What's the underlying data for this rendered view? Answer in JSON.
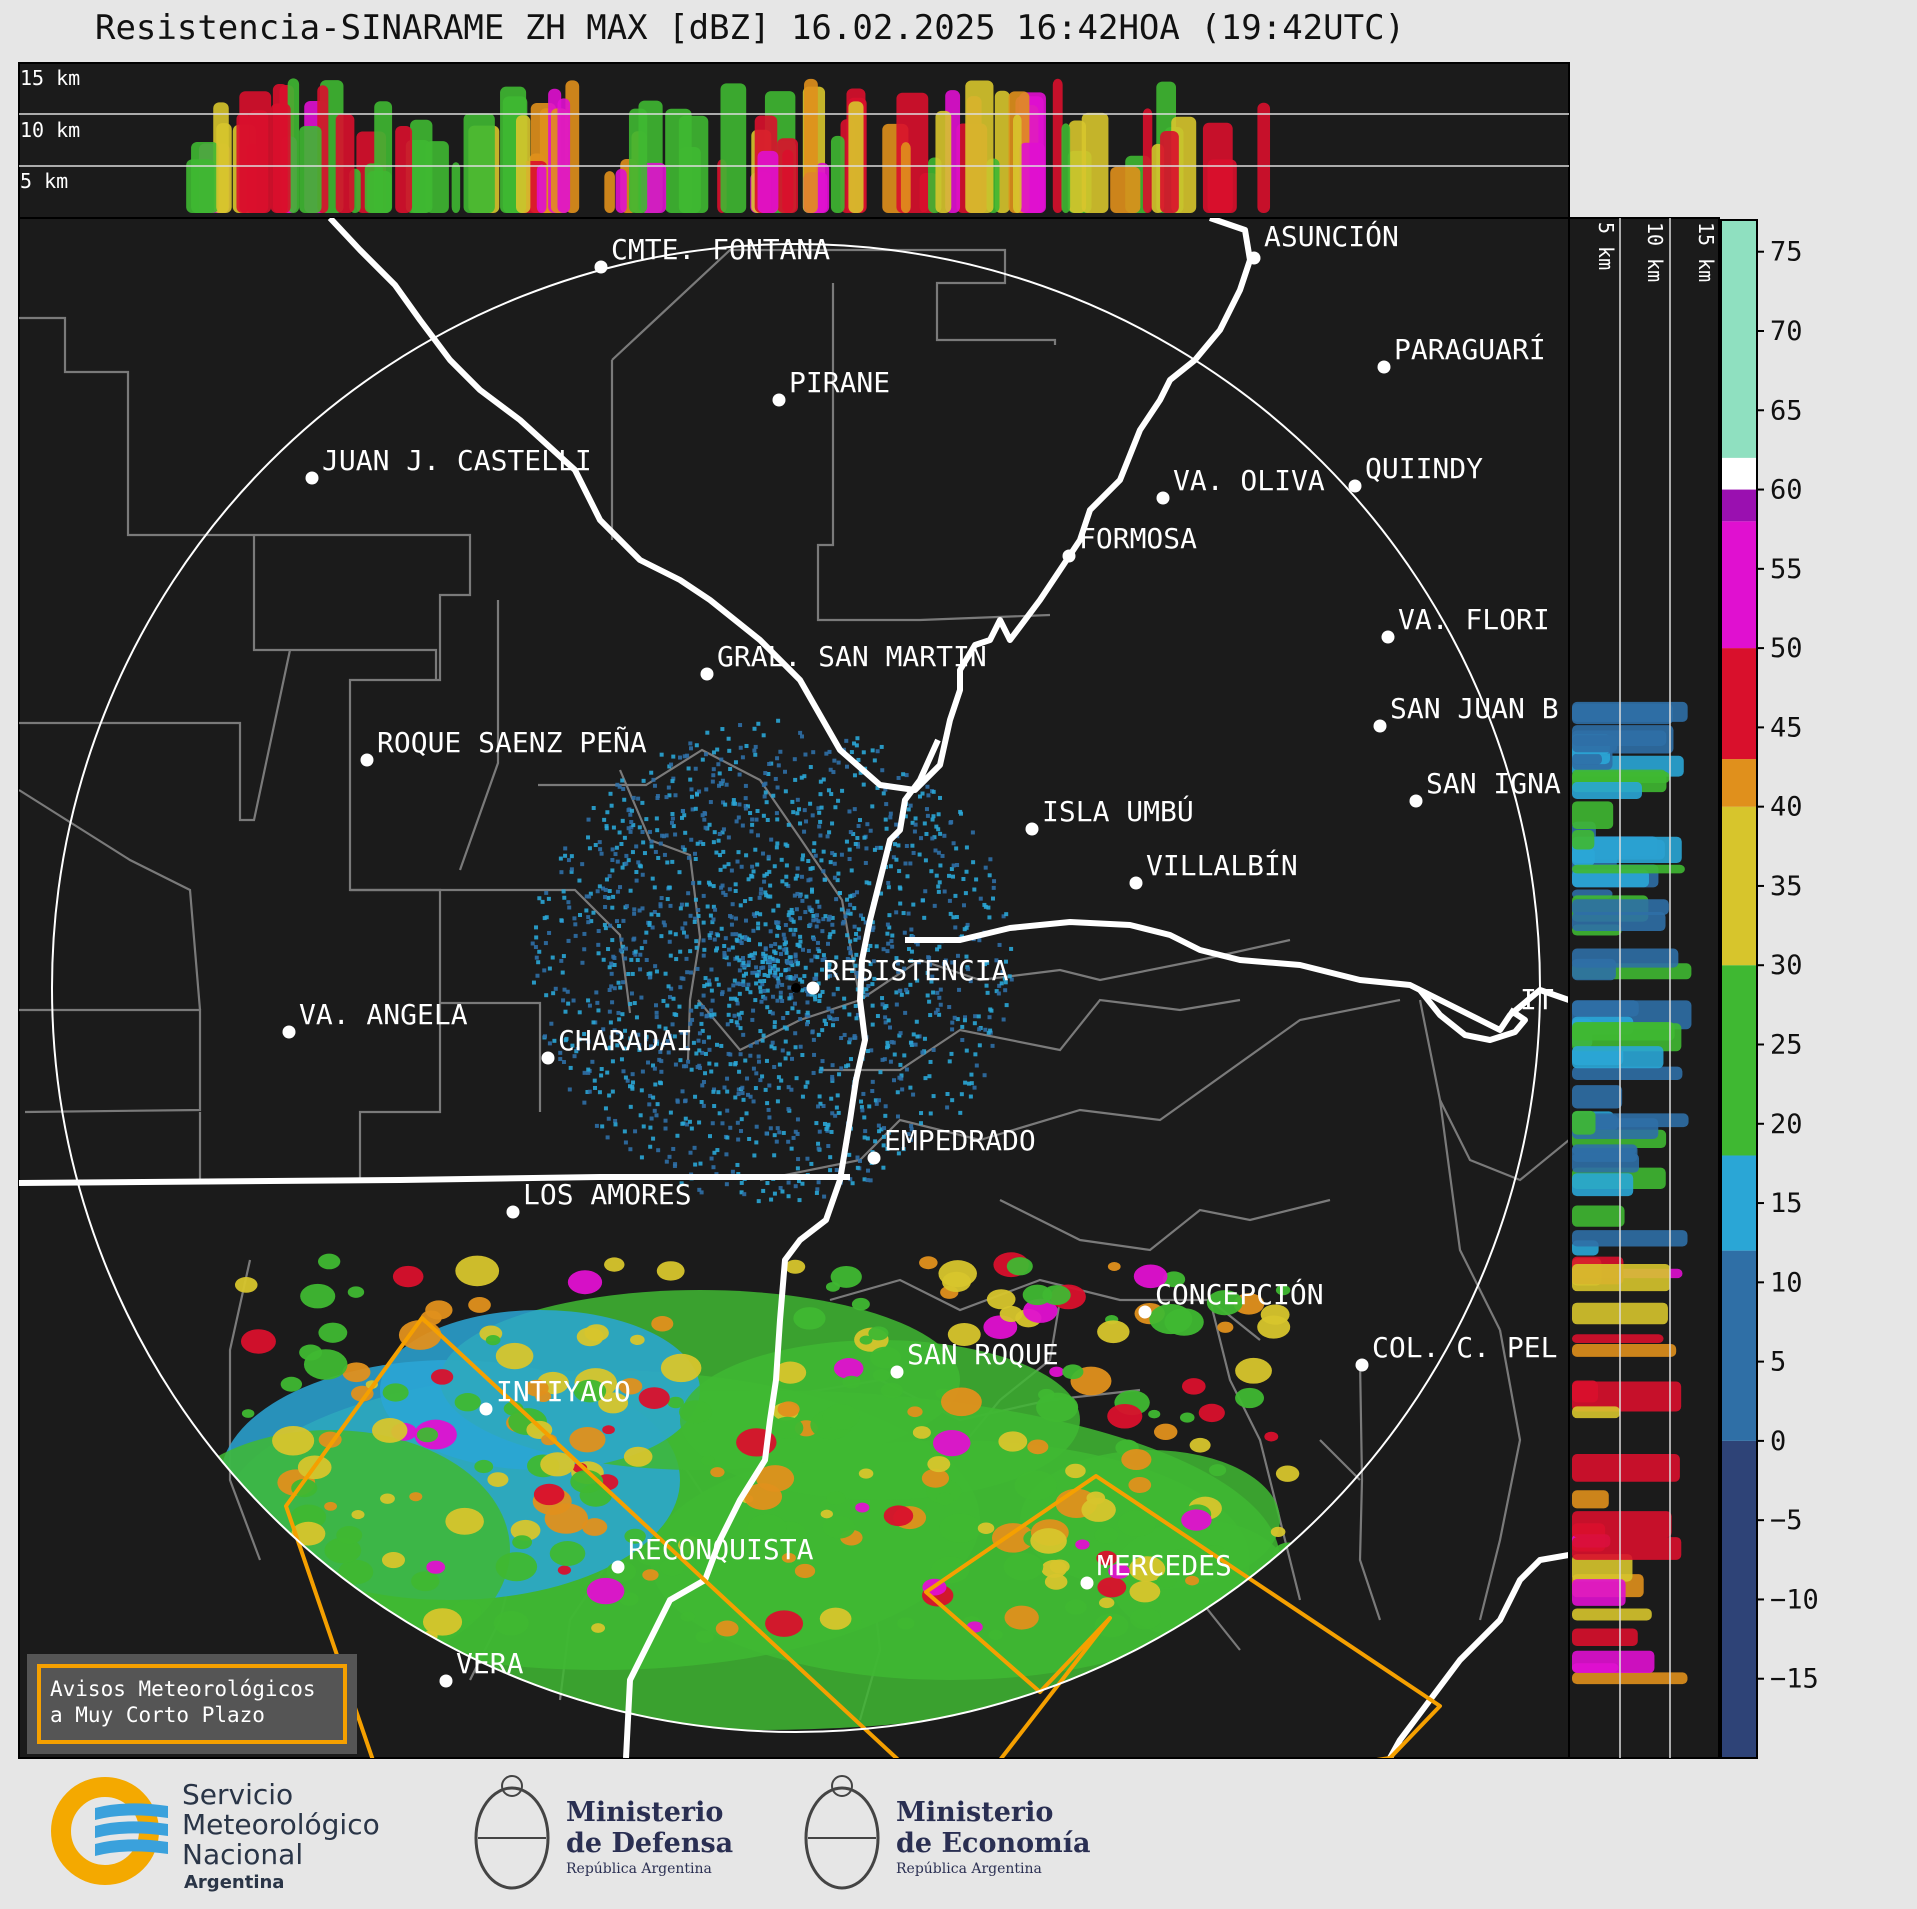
{
  "title": "Resistencia-SINARAME ZH MAX [dBZ] 16.02.2025 16:42HOA (19:42UTC)",
  "top_panel": {
    "height_labels": [
      "15 km",
      "10 km",
      "5 km"
    ]
  },
  "side_panel": {
    "height_labels": [
      "5 km",
      "10 km",
      "15 km"
    ]
  },
  "colorbar": {
    "unit": "dBZ",
    "ticks": [
      "75",
      "70",
      "65",
      "60",
      "55",
      "50",
      "45",
      "40",
      "35",
      "30",
      "25",
      "20",
      "15",
      "10",
      "5",
      "0",
      "−5",
      "−10",
      "−15"
    ],
    "tick_values": [
      75,
      70,
      65,
      60,
      55,
      50,
      45,
      40,
      35,
      30,
      25,
      20,
      15,
      10,
      5,
      0,
      -5,
      -10,
      -15
    ],
    "range": [
      -20,
      77
    ],
    "bands": [
      {
        "from": -20,
        "to": 0,
        "color": "#2e4377"
      },
      {
        "from": 0,
        "to": 12,
        "color": "#2f6fa6"
      },
      {
        "from": 12,
        "to": 18,
        "color": "#2aa6d6"
      },
      {
        "from": 18,
        "to": 30,
        "color": "#3fb832"
      },
      {
        "from": 30,
        "to": 40,
        "color": "#d7c52c"
      },
      {
        "from": 40,
        "to": 43,
        "color": "#e0901c"
      },
      {
        "from": 43,
        "to": 50,
        "color": "#d9102c"
      },
      {
        "from": 50,
        "to": 58,
        "color": "#e010d0"
      },
      {
        "from": 58,
        "to": 60,
        "color": "#9a10b0"
      },
      {
        "from": 60,
        "to": 62,
        "color": "#ffffff"
      },
      {
        "from": 62,
        "to": 77,
        "color": "#8fe0c0"
      }
    ]
  },
  "cities": [
    {
      "name": "ASUNCIÓN"
    },
    {
      "name": "CMTE. FONTANA"
    },
    {
      "name": "PIRANE"
    },
    {
      "name": "PARAGUARÍ"
    },
    {
      "name": "JUAN J. CASTELLI"
    },
    {
      "name": "VA. OLIVA"
    },
    {
      "name": "QUIINDY"
    },
    {
      "name": "FORMOSA"
    },
    {
      "name": "VA. FLORI"
    },
    {
      "name": "GRAL. SAN MARTIN"
    },
    {
      "name": "SAN JUAN B"
    },
    {
      "name": "ROQUE SAENZ PEÑA"
    },
    {
      "name": "SAN IGNA"
    },
    {
      "name": "ISLA UMBÚ"
    },
    {
      "name": "VILLALBÍN"
    },
    {
      "name": "RESISTENCIA"
    },
    {
      "name": "VA. ANGELA"
    },
    {
      "name": "CHARADAI"
    },
    {
      "name": "IT"
    },
    {
      "name": "EMPEDRADO"
    },
    {
      "name": "LOS AMORES"
    },
    {
      "name": "CONCEPCIÓN"
    },
    {
      "name": "SAN ROQUE"
    },
    {
      "name": "COL. C. PEL"
    },
    {
      "name": "INTIYACO"
    },
    {
      "name": "RECONQUISTA"
    },
    {
      "name": "MERCEDES"
    },
    {
      "name": "VERA"
    }
  ],
  "legend_box": {
    "line1": "Avisos Meteorológicos",
    "line2": "a Muy Corto Plazo",
    "color": "#f5a000"
  },
  "logos": {
    "smn": {
      "line1": "Servicio",
      "line2": "Meteorológico",
      "line3": "Nacional",
      "line4": "Argentina"
    },
    "defensa": {
      "line1": "Ministerio",
      "line2": "de Defensa",
      "line3": "República Argentina"
    },
    "economia": {
      "line1": "Ministerio",
      "line2": "de Economía",
      "line3": "República Argentina"
    }
  }
}
